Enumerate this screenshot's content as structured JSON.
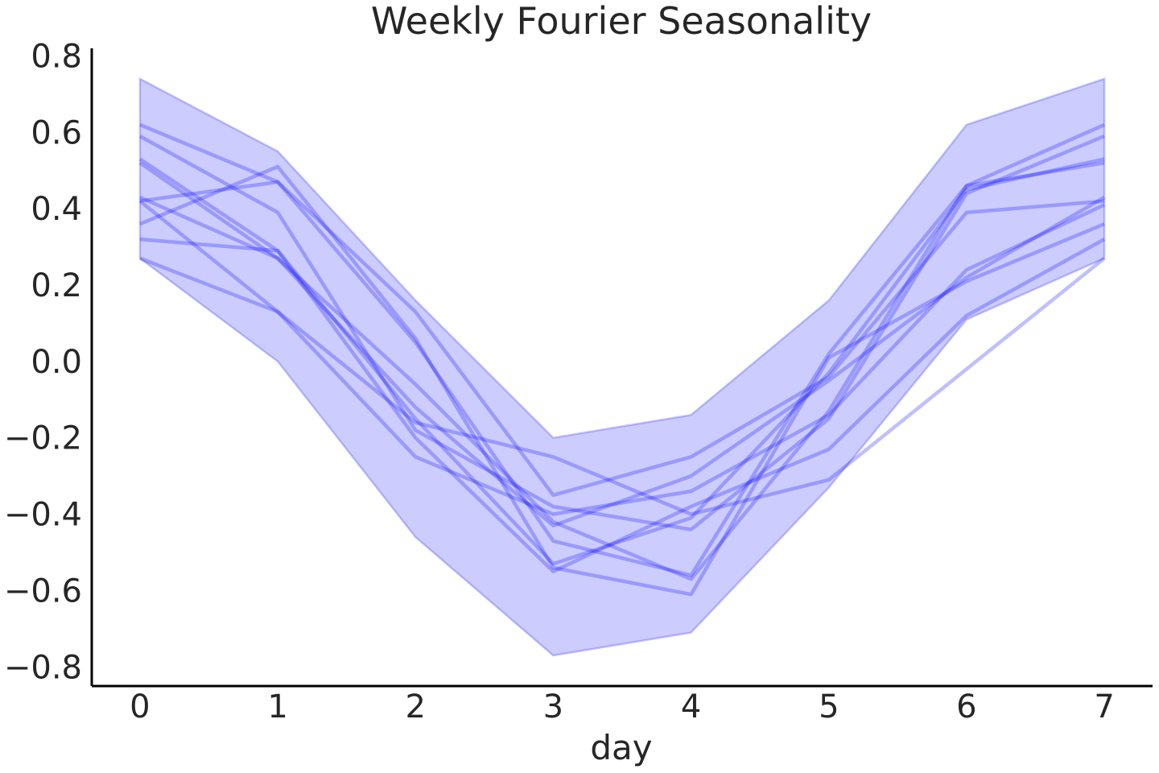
{
  "chart_data": {
    "type": "line",
    "title": "Weekly Fourier Seasonality",
    "xlabel": "day",
    "ylabel": "",
    "xlim": [
      -0.35,
      7.35
    ],
    "ylim": [
      -0.85,
      0.82
    ],
    "x_ticks": [
      0,
      1,
      2,
      3,
      4,
      5,
      6,
      7
    ],
    "y_ticks": [
      0.8,
      0.6,
      0.4,
      0.2,
      0.0,
      -0.2,
      -0.4,
      -0.6,
      -0.8
    ],
    "x_tick_labels": [
      "0",
      "1",
      "2",
      "3",
      "4",
      "5",
      "6",
      "7"
    ],
    "y_tick_labels": [
      "0.8",
      "0.6",
      "0.4",
      "0.2",
      "0.0",
      "−0.2",
      "−0.4",
      "−0.6",
      "−0.8"
    ],
    "grid": false,
    "legend": "none",
    "color": "#0000ff",
    "x": [
      0,
      1,
      2,
      3,
      4,
      5,
      6,
      7
    ],
    "band": {
      "upper": [
        0.74,
        0.55,
        0.16,
        -0.2,
        -0.14,
        0.16,
        0.62,
        0.74
      ],
      "lower": [
        0.27,
        0.0,
        -0.46,
        -0.77,
        -0.71,
        -0.33,
        0.11,
        0.27
      ]
    },
    "series": [
      {
        "values": [
          0.62,
          0.47,
          0.05,
          -0.47,
          -0.56,
          0.02,
          0.46,
          0.62
        ]
      },
      {
        "values": [
          0.59,
          0.39,
          -0.18,
          -0.38,
          -0.44,
          -0.15,
          0.44,
          0.59
        ]
      },
      {
        "values": [
          0.53,
          0.29,
          -0.15,
          -0.53,
          -0.41,
          -0.03,
          0.45,
          0.53
        ]
      },
      {
        "values": [
          0.52,
          0.27,
          -0.12,
          -0.43,
          -0.3,
          -0.05,
          0.22,
          0.43
        ]
      },
      {
        "values": [
          0.43,
          0.27,
          -0.06,
          -0.42,
          -0.57,
          -0.13,
          0.46,
          0.52
        ]
      },
      {
        "values": [
          0.42,
          0.47,
          0.13,
          -0.35,
          -0.25,
          -0.04,
          0.39,
          0.42
        ]
      },
      {
        "values": [
          0.36,
          0.51,
          0.06,
          -0.54,
          -0.61,
          0.01,
          0.21,
          0.36
        ]
      },
      {
        "values": [
          0.32,
          0.29,
          -0.2,
          -0.55,
          -0.38,
          -0.23,
          0.12,
          0.32
        ]
      },
      {
        "values": [
          0.27,
          0.13,
          -0.25,
          -0.4,
          -0.34,
          -0.14,
          0.24,
          0.41
        ]
      },
      {
        "values": [
          0.42,
          0.13,
          -0.16,
          -0.25,
          -0.4,
          -0.31,
          -0.02,
          0.27
        ]
      }
    ]
  }
}
